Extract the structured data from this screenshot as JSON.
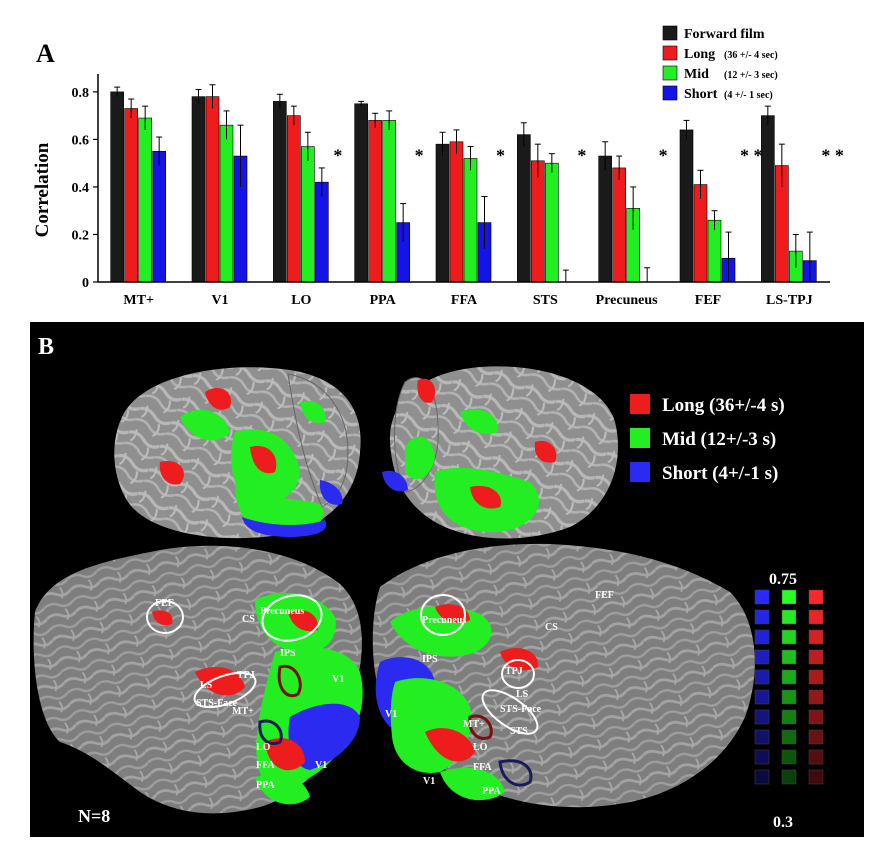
{
  "chart_data": [
    {
      "type": "bar",
      "panel_label": "A",
      "ylabel": "Correlation",
      "xlabel": "",
      "ylim": [
        0,
        0.85
      ],
      "yticks": [
        "0",
        "0.2",
        "0.4",
        "0.6",
        "0.8"
      ],
      "ytick_values": [
        0,
        0.2,
        0.4,
        0.6,
        0.8
      ],
      "categories": [
        "MT+",
        "V1",
        "LO",
        "PPA",
        "FFA",
        "STS",
        "Precuneus",
        "FEF",
        "LS-TPJ"
      ],
      "legend_position": "top-right",
      "series": [
        {
          "name": "Forward film",
          "sublabel": "",
          "color": "#1a1a1a",
          "values": [
            0.8,
            0.78,
            0.76,
            0.75,
            0.58,
            0.62,
            0.53,
            0.64,
            0.7
          ],
          "errors": [
            0.02,
            0.03,
            0.03,
            0.01,
            0.05,
            0.05,
            0.06,
            0.04,
            0.04
          ]
        },
        {
          "name": "Long",
          "sublabel": "(36 +/- 4 sec)",
          "color": "#ee1c1c",
          "values": [
            0.73,
            0.78,
            0.7,
            0.68,
            0.59,
            0.51,
            0.48,
            0.41,
            0.49
          ],
          "errors": [
            0.04,
            0.05,
            0.04,
            0.03,
            0.05,
            0.07,
            0.05,
            0.06,
            0.09
          ]
        },
        {
          "name": "Mid",
          "sublabel": "(12 +/- 3 sec)",
          "color": "#22ee22",
          "values": [
            0.69,
            0.66,
            0.57,
            0.68,
            0.52,
            0.5,
            0.31,
            0.26,
            0.13
          ],
          "errors": [
            0.05,
            0.06,
            0.06,
            0.04,
            0.05,
            0.04,
            0.09,
            0.04,
            0.07
          ]
        },
        {
          "name": "Short",
          "sublabel": "(4 +/- 1 sec)",
          "color": "#1414e6",
          "values": [
            0.55,
            0.53,
            0.42,
            0.25,
            0.25,
            0.0,
            0.0,
            0.1,
            0.09
          ],
          "errors": [
            0.06,
            0.13,
            0.06,
            0.08,
            0.11,
            0.05,
            0.06,
            0.11,
            0.12
          ]
        }
      ],
      "annotations": [
        {
          "text": "*",
          "category": "LO",
          "value": 0.55
        },
        {
          "text": "*",
          "category": "PPA",
          "value": 0.55
        },
        {
          "text": "*",
          "category": "FFA",
          "value": 0.55
        },
        {
          "text": "*",
          "category": "STS",
          "value": 0.55
        },
        {
          "text": "*",
          "category": "Precuneus",
          "value": 0.55
        },
        {
          "text": "* *",
          "category": "FEF",
          "value": 0.55
        },
        {
          "text": "* *",
          "category": "LS-TPJ",
          "value": 0.55
        }
      ]
    },
    {
      "type": "heatmap",
      "panel_label": "B",
      "legend": [
        {
          "name": "Long (36+/-4 s)",
          "color": "#ee1c1c"
        },
        {
          "name": "Mid (12+/-3 s)",
          "color": "#22ee22"
        },
        {
          "name": "Short (4+/-1 s)",
          "color": "#2a2af0"
        }
      ],
      "colorbar": {
        "max_label": "0.75",
        "min_label": "0.3",
        "steps": 10
      },
      "n_label": "N=8",
      "region_labels_left": [
        {
          "text": "FEF"
        },
        {
          "text": "Precuneus"
        },
        {
          "text": "CS"
        },
        {
          "text": "IPS"
        },
        {
          "text": "TPJ"
        },
        {
          "text": "LS"
        },
        {
          "text": "STS-Face"
        },
        {
          "text": "MT+"
        },
        {
          "text": "V1"
        },
        {
          "text": "LO"
        },
        {
          "text": "FFA"
        },
        {
          "text": "V1"
        },
        {
          "text": "PPA"
        }
      ],
      "region_labels_right": [
        {
          "text": "FEF"
        },
        {
          "text": "Precuneus"
        },
        {
          "text": "CS"
        },
        {
          "text": "IPS"
        },
        {
          "text": "TPJ"
        },
        {
          "text": "LS"
        },
        {
          "text": "STS-Face"
        },
        {
          "text": "STS"
        },
        {
          "text": "V1"
        },
        {
          "text": "MT+"
        },
        {
          "text": "LO"
        },
        {
          "text": "FFA"
        },
        {
          "text": "V1"
        },
        {
          "text": "PPA"
        }
      ]
    }
  ]
}
